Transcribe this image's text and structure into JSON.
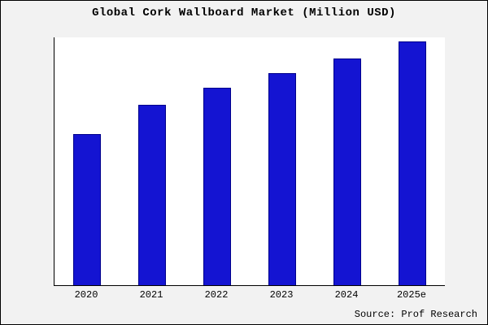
{
  "chart_data": {
    "type": "bar",
    "title": "Global Cork Wallboard Market (Million USD)",
    "categories": [
      "2020",
      "2021",
      "2022",
      "2023",
      "2024",
      "2025e"
    ],
    "values": [
      62,
      74,
      81,
      87,
      93,
      100
    ],
    "xlabel": "",
    "ylabel": "",
    "ylim": [
      0,
      102
    ],
    "grid": false,
    "legend": "none",
    "bar_color": "#1414d2",
    "source": "Source: Prof Research"
  }
}
